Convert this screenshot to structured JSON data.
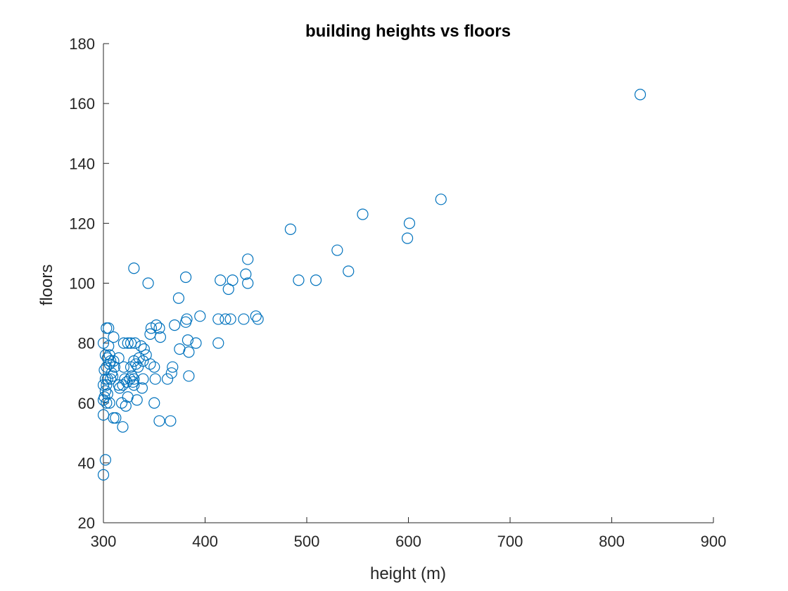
{
  "chart_data": {
    "type": "scatter",
    "title": "building heights vs floors",
    "xlabel": "height (m)",
    "ylabel": "floors",
    "xlim": [
      300,
      900
    ],
    "ylim": [
      20,
      180
    ],
    "xticks": [
      300,
      400,
      500,
      600,
      700,
      800,
      900
    ],
    "yticks": [
      20,
      40,
      60,
      80,
      100,
      120,
      140,
      160,
      180
    ],
    "grid": false,
    "marker": "circle",
    "color": "#0072BD",
    "series": [
      {
        "points": [
          [
            828,
            163
          ],
          [
            632,
            128
          ],
          [
            601,
            120
          ],
          [
            599,
            115
          ],
          [
            555,
            123
          ],
          [
            541,
            104
          ],
          [
            530,
            111
          ],
          [
            509,
            101
          ],
          [
            492,
            101
          ],
          [
            484,
            118
          ],
          [
            452,
            88
          ],
          [
            450,
            89
          ],
          [
            442,
            108
          ],
          [
            442,
            100
          ],
          [
            440,
            103
          ],
          [
            438,
            88
          ],
          [
            427,
            101
          ],
          [
            425,
            88
          ],
          [
            423,
            98
          ],
          [
            420,
            88
          ],
          [
            415,
            101
          ],
          [
            413,
            88
          ],
          [
            413,
            80
          ],
          [
            395,
            89
          ],
          [
            391,
            80
          ],
          [
            384,
            77
          ],
          [
            384,
            69
          ],
          [
            383,
            81
          ],
          [
            382,
            88
          ],
          [
            381,
            87
          ],
          [
            381,
            102
          ],
          [
            375,
            78
          ],
          [
            374,
            95
          ],
          [
            370,
            86
          ],
          [
            368,
            72
          ],
          [
            367,
            70
          ],
          [
            363,
            68
          ],
          [
            366,
            54
          ],
          [
            355,
            54
          ],
          [
            356,
            82
          ],
          [
            355,
            85
          ],
          [
            352,
            86
          ],
          [
            351,
            68
          ],
          [
            350,
            72
          ],
          [
            350,
            60
          ],
          [
            347,
            85
          ],
          [
            346,
            83
          ],
          [
            346,
            73
          ],
          [
            344,
            100
          ],
          [
            342,
            76
          ],
          [
            340,
            78
          ],
          [
            339,
            74
          ],
          [
            339,
            68
          ],
          [
            338,
            65
          ],
          [
            337,
            79
          ],
          [
            335,
            75
          ],
          [
            334,
            72
          ],
          [
            333,
            61
          ],
          [
            332,
            73
          ],
          [
            331,
            80
          ],
          [
            330,
            105
          ],
          [
            330,
            74
          ],
          [
            330,
            68
          ],
          [
            330,
            66
          ],
          [
            329,
            67
          ],
          [
            328,
            69
          ],
          [
            327,
            80
          ],
          [
            327,
            72
          ],
          [
            326,
            68
          ],
          [
            324,
            62
          ],
          [
            324,
            80
          ],
          [
            323,
            67
          ],
          [
            322,
            59
          ],
          [
            321,
            68
          ],
          [
            320,
            80
          ],
          [
            320,
            72
          ],
          [
            319,
            66
          ],
          [
            319,
            52
          ],
          [
            318,
            60
          ],
          [
            316,
            65
          ],
          [
            315,
            75
          ],
          [
            315,
            66
          ],
          [
            312,
            55
          ],
          [
            311,
            72
          ],
          [
            310,
            82
          ],
          [
            310,
            74
          ],
          [
            310,
            55
          ],
          [
            309,
            69
          ],
          [
            308,
            70
          ],
          [
            307,
            74
          ],
          [
            307,
            68
          ],
          [
            306,
            60
          ],
          [
            306,
            73
          ],
          [
            306,
            76
          ],
          [
            305,
            85
          ],
          [
            305,
            79
          ],
          [
            304,
            68
          ],
          [
            304,
            63
          ],
          [
            304,
            75
          ],
          [
            303,
            85
          ],
          [
            303,
            72
          ],
          [
            303,
            66
          ],
          [
            303,
            60
          ],
          [
            302,
            41
          ],
          [
            302,
            68
          ],
          [
            302,
            64
          ],
          [
            302,
            76
          ],
          [
            301,
            71
          ],
          [
            301,
            62
          ],
          [
            300,
            80
          ],
          [
            300,
            66
          ],
          [
            300,
            61
          ],
          [
            300,
            56
          ],
          [
            300,
            36
          ]
        ]
      }
    ]
  }
}
